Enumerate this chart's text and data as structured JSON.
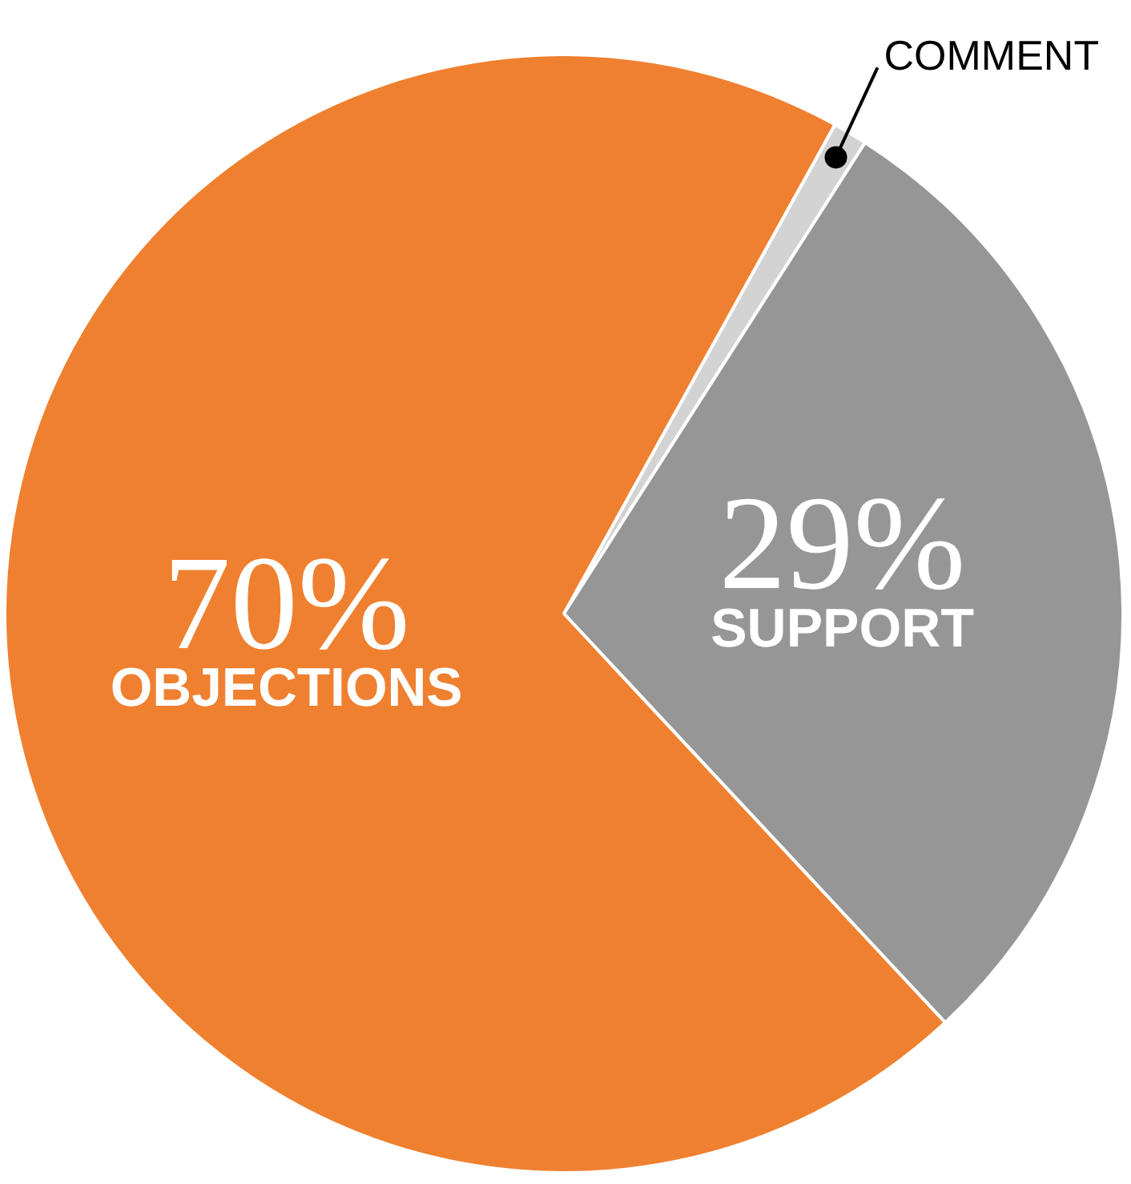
{
  "chart_data": {
    "type": "pie",
    "categories": [
      "COMMENT",
      "SUPPORT",
      "OBJECTIONS"
    ],
    "values": [
      1,
      29,
      70
    ],
    "colors": [
      "#d3d3d3",
      "#969696",
      "#ef8030"
    ],
    "value_labels": [
      null,
      "29%",
      "70%"
    ],
    "legend": false
  }
}
